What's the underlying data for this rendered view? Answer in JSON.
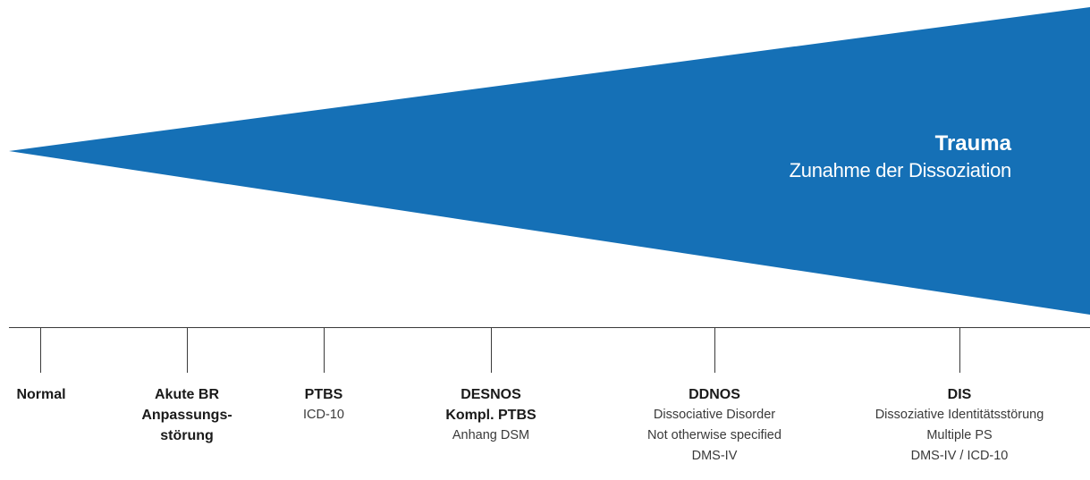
{
  "colors": {
    "wedge": "#1570b6",
    "wedge_text": "#ffffff",
    "timeline": "#3a3a3a"
  },
  "wedge": {
    "title": "Trauma",
    "subtitle": "Zunahme der Dissoziation"
  },
  "stages": [
    {
      "key": "normal",
      "title_lines": [
        "Normal"
      ],
      "sub_lines": []
    },
    {
      "key": "akute-br",
      "title_lines": [
        "Akute BR",
        "Anpassungs-",
        "störung"
      ],
      "sub_lines": []
    },
    {
      "key": "ptbs",
      "title_lines": [
        "PTBS"
      ],
      "sub_lines": [
        "ICD-10"
      ]
    },
    {
      "key": "desnos",
      "title_lines": [
        "DESNOS",
        "Kompl. PTBS"
      ],
      "sub_lines": [
        "Anhang DSM"
      ]
    },
    {
      "key": "ddnos",
      "title_lines": [
        "DDNOS"
      ],
      "sub_lines": [
        "Dissociative Disorder",
        "Not otherwise specified",
        "DMS-IV"
      ]
    },
    {
      "key": "dis",
      "title_lines": [
        "DIS"
      ],
      "sub_lines": [
        "Dissoziative Identitätsstörung",
        "Multiple PS",
        "DMS-IV / ICD-10"
      ]
    }
  ]
}
